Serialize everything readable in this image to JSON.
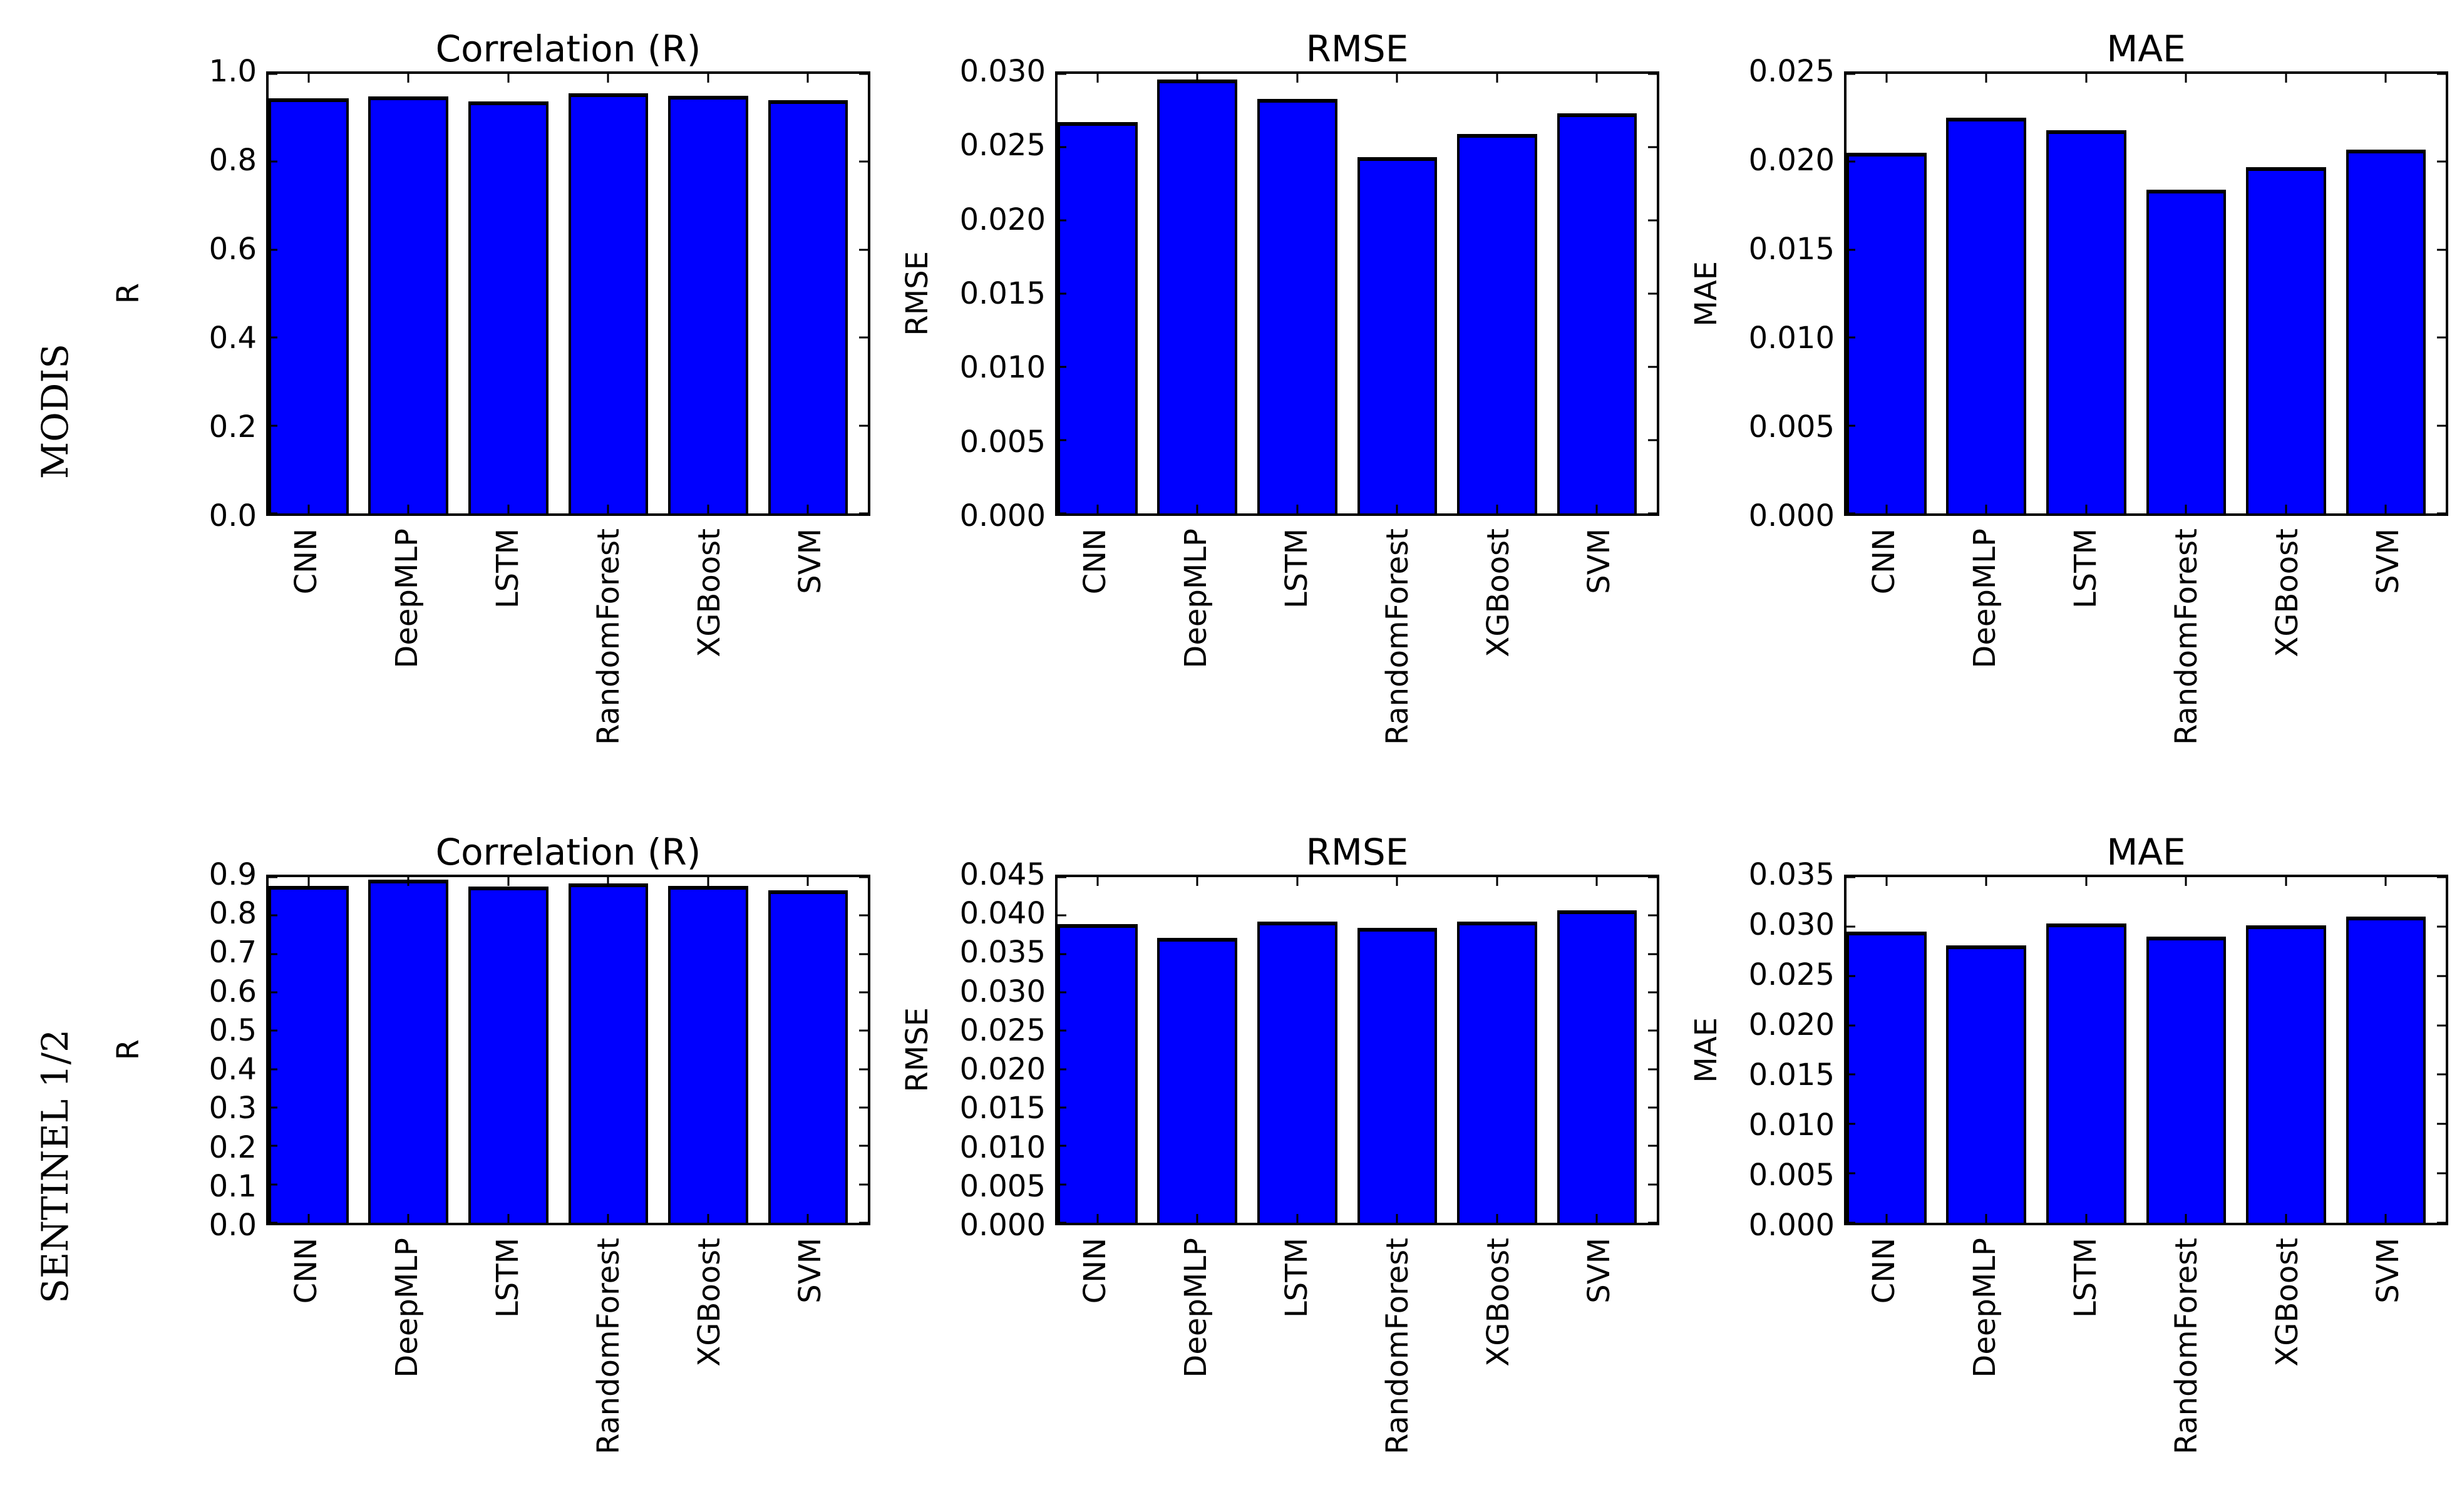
{
  "figure": {
    "rows": [
      {
        "label": "MODIS"
      },
      {
        "label": "SENTINEL 1/2"
      }
    ]
  },
  "style": {
    "bar_color": "#0000ff",
    "bar_edge_color": "#000000",
    "axis_color": "#000000",
    "background": "#ffffff"
  },
  "chart_data": [
    {
      "row": 0,
      "type": "bar",
      "title": "Correlation (R)",
      "ylabel": "R",
      "xlabel": "",
      "categories": [
        "CNN",
        "DeepMLP",
        "LSTM",
        "RandomForest",
        "XGBoost",
        "SVM"
      ],
      "values": [
        0.944,
        0.949,
        0.937,
        0.956,
        0.95,
        0.94
      ],
      "ylim": [
        0,
        1.0
      ],
      "yticks": [
        0.0,
        0.2,
        0.4,
        0.6,
        0.8,
        1.0
      ],
      "ytick_labels": [
        "0.0",
        "0.2",
        "0.4",
        "0.6",
        "0.8",
        "1.0"
      ],
      "grid": false,
      "legend": "none",
      "tick_direction": "in"
    },
    {
      "row": 0,
      "type": "bar",
      "title": "RMSE",
      "ylabel": "RMSE",
      "xlabel": "",
      "categories": [
        "CNN",
        "DeepMLP",
        "LSTM",
        "RandomForest",
        "XGBoost",
        "SVM"
      ],
      "values": [
        0.0267,
        0.0296,
        0.0283,
        0.0243,
        0.0259,
        0.0273
      ],
      "ylim": [
        0,
        0.03
      ],
      "yticks": [
        0.0,
        0.005,
        0.01,
        0.015,
        0.02,
        0.025,
        0.03
      ],
      "ytick_labels": [
        "0.000",
        "0.005",
        "0.010",
        "0.015",
        "0.020",
        "0.025",
        "0.030"
      ],
      "grid": false,
      "legend": "none",
      "tick_direction": "in"
    },
    {
      "row": 0,
      "type": "bar",
      "title": "MAE",
      "ylabel": "MAE",
      "xlabel": "",
      "categories": [
        "CNN",
        "DeepMLP",
        "LSTM",
        "RandomForest",
        "XGBoost",
        "SVM"
      ],
      "values": [
        0.0205,
        0.0225,
        0.0218,
        0.0184,
        0.0197,
        0.0207
      ],
      "ylim": [
        0,
        0.025
      ],
      "yticks": [
        0.0,
        0.005,
        0.01,
        0.015,
        0.02,
        0.025
      ],
      "ytick_labels": [
        "0.000",
        "0.005",
        "0.010",
        "0.015",
        "0.020",
        "0.025"
      ],
      "grid": false,
      "legend": "none",
      "tick_direction": "in"
    },
    {
      "row": 1,
      "type": "bar",
      "title": "Correlation (R)",
      "ylabel": "R",
      "xlabel": "",
      "categories": [
        "CNN",
        "DeepMLP",
        "LSTM",
        "RandomForest",
        "XGBoost",
        "SVM"
      ],
      "values": [
        0.878,
        0.894,
        0.876,
        0.883,
        0.877,
        0.866
      ],
      "ylim": [
        0,
        0.9
      ],
      "yticks": [
        0.0,
        0.1,
        0.2,
        0.3,
        0.4,
        0.5,
        0.6,
        0.7,
        0.8,
        0.9
      ],
      "ytick_labels": [
        "0.0",
        "0.1",
        "0.2",
        "0.3",
        "0.4",
        "0.5",
        "0.6",
        "0.7",
        "0.8",
        "0.9"
      ],
      "grid": false,
      "legend": "none",
      "tick_direction": "in"
    },
    {
      "row": 1,
      "type": "bar",
      "title": "RMSE",
      "ylabel": "RMSE",
      "xlabel": "",
      "categories": [
        "CNN",
        "DeepMLP",
        "LSTM",
        "RandomForest",
        "XGBoost",
        "SVM"
      ],
      "values": [
        0.0389,
        0.0371,
        0.0392,
        0.0384,
        0.0392,
        0.0407
      ],
      "ylim": [
        0,
        0.045
      ],
      "yticks": [
        0.0,
        0.005,
        0.01,
        0.015,
        0.02,
        0.025,
        0.03,
        0.035,
        0.04,
        0.045
      ],
      "ytick_labels": [
        "0.000",
        "0.005",
        "0.010",
        "0.015",
        "0.020",
        "0.025",
        "0.030",
        "0.035",
        "0.040",
        "0.045"
      ],
      "grid": false,
      "legend": "none",
      "tick_direction": "in"
    },
    {
      "row": 1,
      "type": "bar",
      "title": "MAE",
      "ylabel": "MAE",
      "xlabel": "",
      "categories": [
        "CNN",
        "DeepMLP",
        "LSTM",
        "RandomForest",
        "XGBoost",
        "SVM"
      ],
      "values": [
        0.0295,
        0.0281,
        0.0303,
        0.029,
        0.0301,
        0.031
      ],
      "ylim": [
        0,
        0.035
      ],
      "yticks": [
        0.0,
        0.005,
        0.01,
        0.015,
        0.02,
        0.025,
        0.03,
        0.035
      ],
      "ytick_labels": [
        "0.000",
        "0.005",
        "0.010",
        "0.015",
        "0.020",
        "0.025",
        "0.030",
        "0.035"
      ],
      "grid": false,
      "legend": "none",
      "tick_direction": "in"
    }
  ]
}
